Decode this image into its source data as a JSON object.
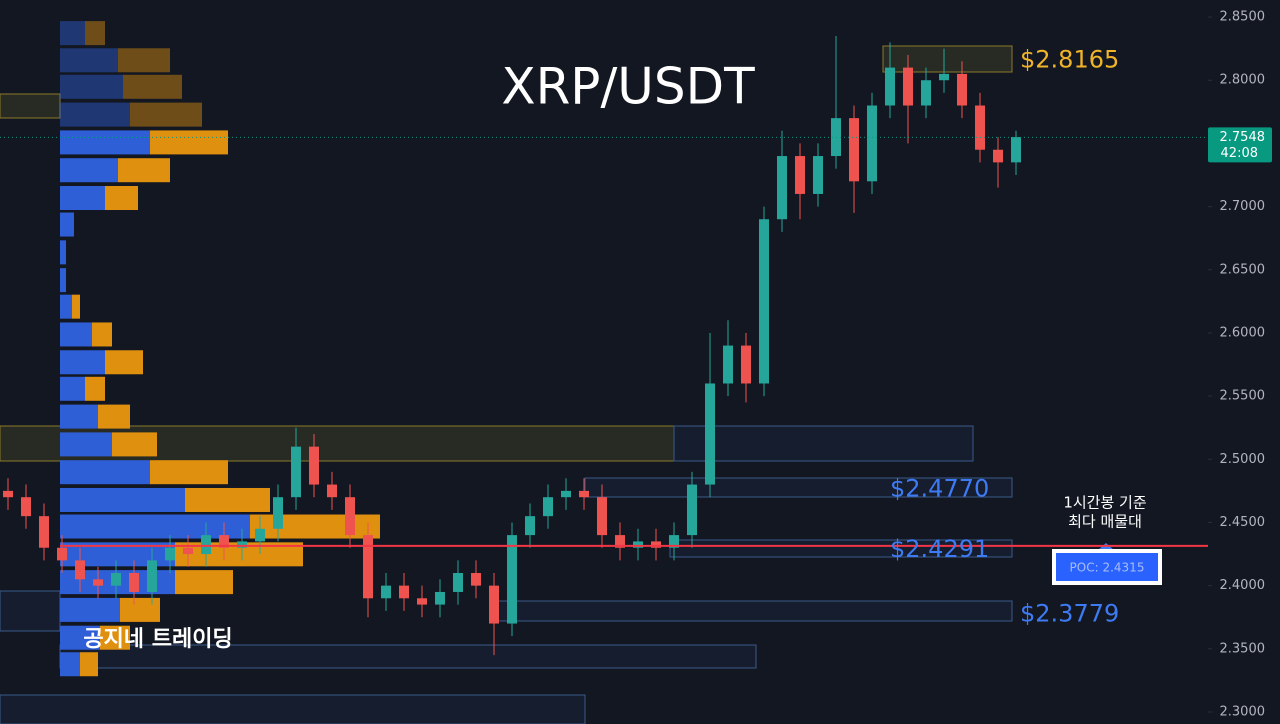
{
  "chart_data": {
    "type": "candlestick",
    "title": "XRP/USDT",
    "watermark": "공지네 트레이딩",
    "ylim": [
      2.2905,
      2.8635
    ],
    "yticks": [
      {
        "value": 2.3,
        "label": "2.3000"
      },
      {
        "value": 2.35,
        "label": "2.3500"
      },
      {
        "value": 2.4,
        "label": "2.4000"
      },
      {
        "value": 2.45,
        "label": "2.4500"
      },
      {
        "value": 2.5,
        "label": "2.5000"
      },
      {
        "value": 2.55,
        "label": "2.5500"
      },
      {
        "value": 2.6,
        "label": "2.6000"
      },
      {
        "value": 2.65,
        "label": "2.6500"
      },
      {
        "value": 2.7,
        "label": "2.7000"
      },
      {
        "value": 2.75,
        "label": "2.7500"
      },
      {
        "value": 2.8,
        "label": "2.8000"
      },
      {
        "value": 2.85,
        "label": "2.8500"
      }
    ],
    "last_price": {
      "value": 2.7548,
      "label": "2.7548",
      "countdown": "42:08",
      "color": "#089981"
    },
    "levels": [
      {
        "value": 2.8165,
        "label": "$2.8165",
        "color": "#f0b429"
      },
      {
        "value": 2.477,
        "label": "$2.4770",
        "color": "#3d7bf5"
      },
      {
        "value": 2.4291,
        "label": "$2.4291",
        "color": "#3d7bf5"
      },
      {
        "value": 2.3779,
        "label": "$2.3779",
        "color": "#3d7bf5"
      }
    ],
    "poc": {
      "value": 2.4315,
      "label": "POC: 2.4315",
      "color": "#f23645"
    },
    "annotation": [
      "1시간봉 기준",
      "최다 매물대"
    ],
    "up_color": "#26a69a",
    "down_color": "#ef5350",
    "open": [
      2.475,
      2.47,
      2.455,
      2.43,
      2.42,
      2.405,
      2.4,
      2.41,
      2.395,
      2.42,
      2.43,
      2.425,
      2.44,
      2.43,
      2.435,
      2.445,
      2.47,
      2.51,
      2.48,
      2.47,
      2.44,
      2.39,
      2.4,
      2.39,
      2.385,
      2.395,
      2.41,
      2.4,
      2.37,
      2.44,
      2.455,
      2.47,
      2.475,
      2.47,
      2.44,
      2.43,
      2.435,
      2.43,
      2.44,
      2.48,
      2.56,
      2.59,
      2.56,
      2.69,
      2.74,
      2.71,
      2.74,
      2.77,
      2.72,
      2.78,
      2.81,
      2.78,
      2.8,
      2.805,
      2.78,
      2.745,
      2.735
    ],
    "high": [
      2.485,
      2.48,
      2.465,
      2.44,
      2.43,
      2.415,
      2.42,
      2.42,
      2.43,
      2.44,
      2.44,
      2.45,
      2.45,
      2.445,
      2.455,
      2.48,
      2.525,
      2.52,
      2.49,
      2.48,
      2.45,
      2.41,
      2.41,
      2.4,
      2.405,
      2.42,
      2.42,
      2.41,
      2.45,
      2.465,
      2.48,
      2.485,
      2.485,
      2.48,
      2.45,
      2.445,
      2.445,
      2.45,
      2.49,
      2.6,
      2.61,
      2.6,
      2.7,
      2.76,
      2.75,
      2.75,
      2.835,
      2.78,
      2.79,
      2.83,
      2.82,
      2.81,
      2.825,
      2.815,
      2.79,
      2.755,
      2.76
    ],
    "low": [
      2.46,
      2.445,
      2.42,
      2.41,
      2.395,
      2.39,
      2.39,
      2.385,
      2.385,
      2.41,
      2.415,
      2.415,
      2.42,
      2.42,
      2.425,
      2.435,
      2.46,
      2.47,
      2.46,
      2.43,
      2.375,
      2.38,
      2.38,
      2.375,
      2.375,
      2.385,
      2.39,
      2.345,
      2.36,
      2.43,
      2.445,
      2.46,
      2.46,
      2.43,
      2.42,
      2.42,
      2.42,
      2.42,
      2.43,
      2.47,
      2.55,
      2.545,
      2.55,
      2.68,
      2.69,
      2.7,
      2.73,
      2.695,
      2.71,
      2.77,
      2.75,
      2.77,
      2.79,
      2.77,
      2.735,
      2.715,
      2.725
    ],
    "close": [
      2.47,
      2.455,
      2.43,
      2.42,
      2.405,
      2.4,
      2.41,
      2.395,
      2.42,
      2.43,
      2.425,
      2.44,
      2.43,
      2.435,
      2.445,
      2.47,
      2.51,
      2.48,
      2.47,
      2.44,
      2.39,
      2.4,
      2.39,
      2.385,
      2.395,
      2.41,
      2.4,
      2.37,
      2.44,
      2.455,
      2.47,
      2.475,
      2.47,
      2.44,
      2.43,
      2.435,
      2.43,
      2.44,
      2.48,
      2.56,
      2.59,
      2.56,
      2.69,
      2.74,
      2.71,
      2.74,
      2.77,
      2.72,
      2.78,
      2.81,
      2.78,
      2.8,
      2.805,
      2.78,
      2.745,
      2.735,
      2.755
    ],
    "profile": {
      "prices": [
        2.8365,
        2.815,
        2.794,
        2.772,
        2.75,
        2.728,
        2.706,
        2.685,
        2.663,
        2.641,
        2.62,
        2.598,
        2.576,
        2.555,
        2.533,
        2.511,
        2.489,
        2.467,
        2.446,
        2.424,
        2.402,
        2.38,
        2.358,
        2.337
      ],
      "buy": [
        25,
        58,
        63,
        70,
        90,
        58,
        45,
        14,
        6,
        6,
        12,
        32,
        45,
        25,
        38,
        52,
        90,
        125,
        190,
        115,
        115,
        60,
        40,
        20
      ],
      "sell": [
        20,
        52,
        59,
        72,
        78,
        52,
        33,
        0,
        0,
        0,
        8,
        20,
        38,
        20,
        32,
        45,
        78,
        85,
        130,
        128,
        58,
        40,
        30,
        18
      ],
      "buy_color": "#2f5fd6",
      "sell_color": "#e0900f"
    }
  }
}
